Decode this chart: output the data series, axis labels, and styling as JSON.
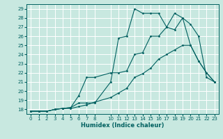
{
  "xlabel": "Humidex (Indice chaleur)",
  "bg_color": "#c8e8e0",
  "grid_color": "#ffffff",
  "line_color": "#006060",
  "xlim": [
    -0.5,
    23.5
  ],
  "ylim": [
    17.5,
    29.5
  ],
  "xticks": [
    0,
    1,
    2,
    3,
    4,
    5,
    6,
    7,
    8,
    10,
    11,
    12,
    13,
    14,
    15,
    16,
    17,
    18,
    19,
    20,
    21,
    22,
    23
  ],
  "yticks": [
    18,
    19,
    20,
    21,
    22,
    23,
    24,
    25,
    26,
    27,
    28,
    29
  ],
  "line1_x": [
    0,
    1,
    2,
    3,
    4,
    5,
    6,
    7,
    8,
    10,
    11,
    12,
    13,
    14,
    15,
    16,
    17,
    18,
    19,
    20,
    21,
    22,
    23
  ],
  "line1_y": [
    17.8,
    17.8,
    17.8,
    18.0,
    18.1,
    18.1,
    18.3,
    18.5,
    18.8,
    19.3,
    19.8,
    20.3,
    21.5,
    21.9,
    22.5,
    23.5,
    24.0,
    24.5,
    25.0,
    25.0,
    23.3,
    22.0,
    21.0
  ],
  "line2_x": [
    0,
    1,
    2,
    3,
    4,
    5,
    6,
    7,
    8,
    10,
    11,
    12,
    13,
    14,
    15,
    16,
    17,
    18,
    19,
    20,
    21,
    22,
    23
  ],
  "line2_y": [
    17.8,
    17.8,
    17.8,
    18.0,
    18.1,
    18.2,
    19.5,
    21.5,
    21.5,
    22.0,
    22.0,
    22.2,
    24.0,
    24.2,
    26.0,
    26.0,
    27.0,
    26.7,
    28.0,
    25.0,
    23.3,
    22.0,
    21.0
  ],
  "line3_x": [
    0,
    1,
    2,
    3,
    4,
    5,
    6,
    7,
    8,
    10,
    11,
    12,
    13,
    14,
    15,
    16,
    17,
    18,
    19,
    20,
    21,
    22,
    23
  ],
  "line3_y": [
    17.8,
    17.8,
    17.8,
    18.0,
    18.1,
    18.2,
    18.7,
    18.7,
    18.7,
    21.0,
    25.8,
    26.0,
    29.0,
    28.5,
    28.5,
    28.5,
    27.0,
    28.5,
    28.0,
    27.3,
    26.0,
    21.5,
    21.0
  ]
}
